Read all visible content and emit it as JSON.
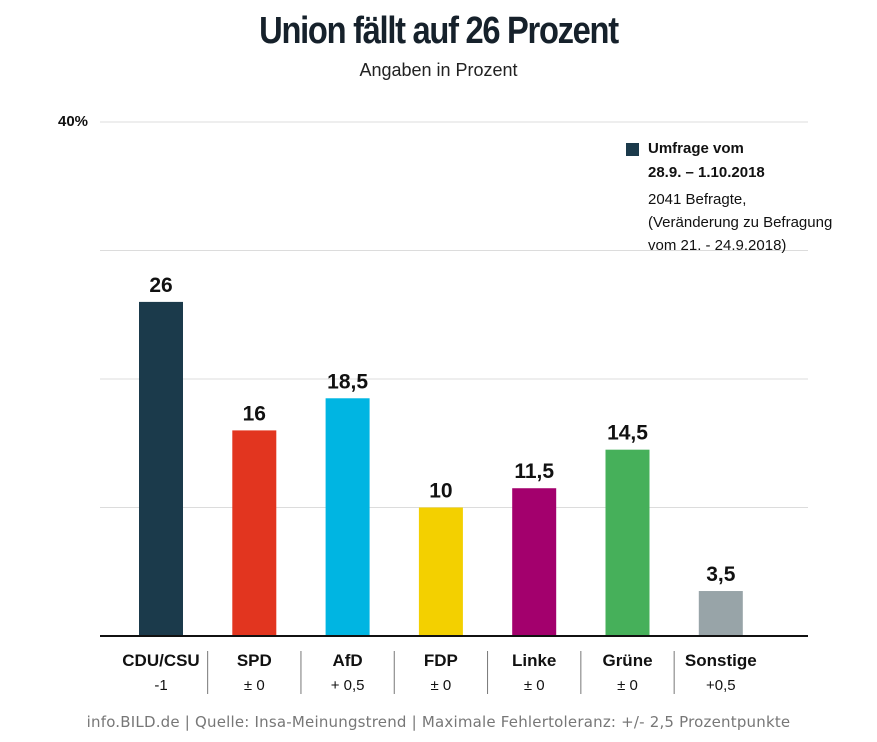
{
  "chart_data": {
    "type": "bar",
    "title": "Union fällt auf 26 Prozent",
    "subtitle": "Angaben in Prozent",
    "ylabel": "",
    "xlabel": "",
    "ylim": [
      0,
      40
    ],
    "ytick_label": "40%",
    "gridlines": [
      10,
      20,
      30,
      40
    ],
    "categories": [
      "CDU/CSU",
      "SPD",
      "AfD",
      "FDP",
      "Linke",
      "Grüne",
      "Sonstige"
    ],
    "values": [
      26,
      16,
      18.5,
      10,
      11.5,
      14.5,
      3.5
    ],
    "value_labels": [
      "26",
      "16",
      "18,5",
      "10",
      "11,5",
      "14,5",
      "3,5"
    ],
    "changes": [
      "-1",
      "± 0",
      "+ 0,5",
      "± 0",
      "± 0",
      "± 0",
      "+0,5"
    ],
    "colors": [
      "#1b3a4b",
      "#e2351f",
      "#00b5e2",
      "#f3d000",
      "#a3006d",
      "#46b05a",
      "#98a4a8"
    ],
    "legend": {
      "title": "Umfrage vom",
      "dates": "28.9. – 1.10.2018",
      "note_lines": [
        "2041 Befragte,",
        "(Veränderung zu Befragung",
        "vom 21. - 24.9.2018)"
      ]
    }
  },
  "footer": "info.BILD.de | Quelle: Insa-Meinungstrend | Maximale Fehlertoleranz: +/- 2,5 Prozentpunkte"
}
